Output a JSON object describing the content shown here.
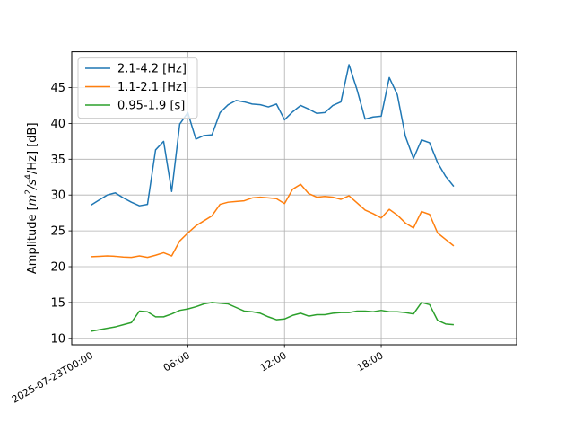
{
  "chart_data": {
    "type": "line",
    "ylabel_parts": {
      "prefix": "Amplitude [",
      "m": "m",
      "exp2": "2",
      "slash_s": "/s",
      "exp4": "4",
      "suffix": "/Hz] [dB]"
    },
    "xlim": [
      "2025-07-22T22:48:00",
      "2025-07-24T02:24:00"
    ],
    "ylim": [
      9.1,
      50.0
    ],
    "xticks": [
      {
        "t": "2025-07-23T00:00:00",
        "label": "2025-07-23T00:00"
      },
      {
        "t": "2025-07-23T06:00:00",
        "label": "06:00"
      },
      {
        "t": "2025-07-23T12:00:00",
        "label": "12:00"
      },
      {
        "t": "2025-07-23T18:00:00",
        "label": "18:00"
      }
    ],
    "yticks": [
      10,
      15,
      20,
      25,
      30,
      35,
      40,
      45
    ],
    "grid": true,
    "legend": "top-left",
    "x": [
      "2025-07-23T00:00:00",
      "2025-07-23T00:30:00",
      "2025-07-23T01:00:00",
      "2025-07-23T01:30:00",
      "2025-07-23T02:00:00",
      "2025-07-23T02:30:00",
      "2025-07-23T03:00:00",
      "2025-07-23T03:30:00",
      "2025-07-23T04:00:00",
      "2025-07-23T04:30:00",
      "2025-07-23T05:00:00",
      "2025-07-23T05:30:00",
      "2025-07-23T06:00:00",
      "2025-07-23T06:30:00",
      "2025-07-23T07:00:00",
      "2025-07-23T07:30:00",
      "2025-07-23T08:00:00",
      "2025-07-23T08:30:00",
      "2025-07-23T09:00:00",
      "2025-07-23T09:30:00",
      "2025-07-23T10:00:00",
      "2025-07-23T10:30:00",
      "2025-07-23T11:00:00",
      "2025-07-23T11:30:00",
      "2025-07-23T12:00:00",
      "2025-07-23T12:30:00",
      "2025-07-23T13:00:00",
      "2025-07-23T13:30:00",
      "2025-07-23T14:00:00",
      "2025-07-23T14:30:00",
      "2025-07-23T15:00:00",
      "2025-07-23T15:30:00",
      "2025-07-23T16:00:00",
      "2025-07-23T16:30:00",
      "2025-07-23T17:00:00",
      "2025-07-23T17:30:00",
      "2025-07-23T18:00:00",
      "2025-07-23T18:30:00",
      "2025-07-23T19:00:00",
      "2025-07-23T19:30:00",
      "2025-07-23T20:00:00",
      "2025-07-23T20:30:00",
      "2025-07-23T21:00:00",
      "2025-07-23T21:30:00",
      "2025-07-23T22:00:00",
      "2025-07-23T22:30:00"
    ],
    "series": [
      {
        "name": "2.1-4.2 [Hz]",
        "color": "#1f77b4",
        "values": [
          28.6,
          29.3,
          30.0,
          30.3,
          29.6,
          29.0,
          28.5,
          28.7,
          36.3,
          37.5,
          30.5,
          39.9,
          41.5,
          37.8,
          38.3,
          38.4,
          41.5,
          42.6,
          43.2,
          43.0,
          42.7,
          42.6,
          42.3,
          42.7,
          40.5,
          41.6,
          42.5,
          42.0,
          41.4,
          41.5,
          42.5,
          43.0,
          48.2,
          44.7,
          40.6,
          40.9,
          41.0,
          46.4,
          44.0,
          38.2,
          35.1,
          37.7,
          37.3,
          34.5,
          32.6,
          31.2
        ]
      },
      {
        "name": "1.1-2.1 [Hz]",
        "color": "#ff7f0e",
        "values": [
          21.4,
          21.45,
          21.5,
          21.45,
          21.35,
          21.3,
          21.5,
          21.3,
          21.6,
          21.95,
          21.5,
          23.6,
          24.7,
          25.7,
          26.4,
          27.1,
          28.7,
          29.0,
          29.1,
          29.2,
          29.6,
          29.7,
          29.6,
          29.5,
          28.8,
          30.8,
          31.5,
          30.2,
          29.7,
          29.8,
          29.7,
          29.4,
          29.9,
          28.9,
          27.9,
          27.4,
          26.8,
          28.0,
          27.2,
          26.1,
          25.4,
          27.7,
          27.3,
          24.7,
          23.8,
          22.9
        ]
      },
      {
        "name": "0.95-1.9 [s]",
        "color": "#2ca02c",
        "values": [
          11.0,
          11.2,
          11.4,
          11.6,
          11.9,
          12.2,
          13.8,
          13.7,
          13.0,
          13.0,
          13.4,
          13.9,
          14.1,
          14.4,
          14.8,
          15.0,
          14.9,
          14.8,
          14.3,
          13.8,
          13.7,
          13.5,
          13.0,
          12.6,
          12.7,
          13.2,
          13.5,
          13.1,
          13.3,
          13.3,
          13.5,
          13.6,
          13.6,
          13.8,
          13.8,
          13.7,
          13.9,
          13.7,
          13.7,
          13.6,
          13.4,
          15.0,
          14.7,
          12.5,
          12.0,
          11.9
        ]
      }
    ]
  }
}
